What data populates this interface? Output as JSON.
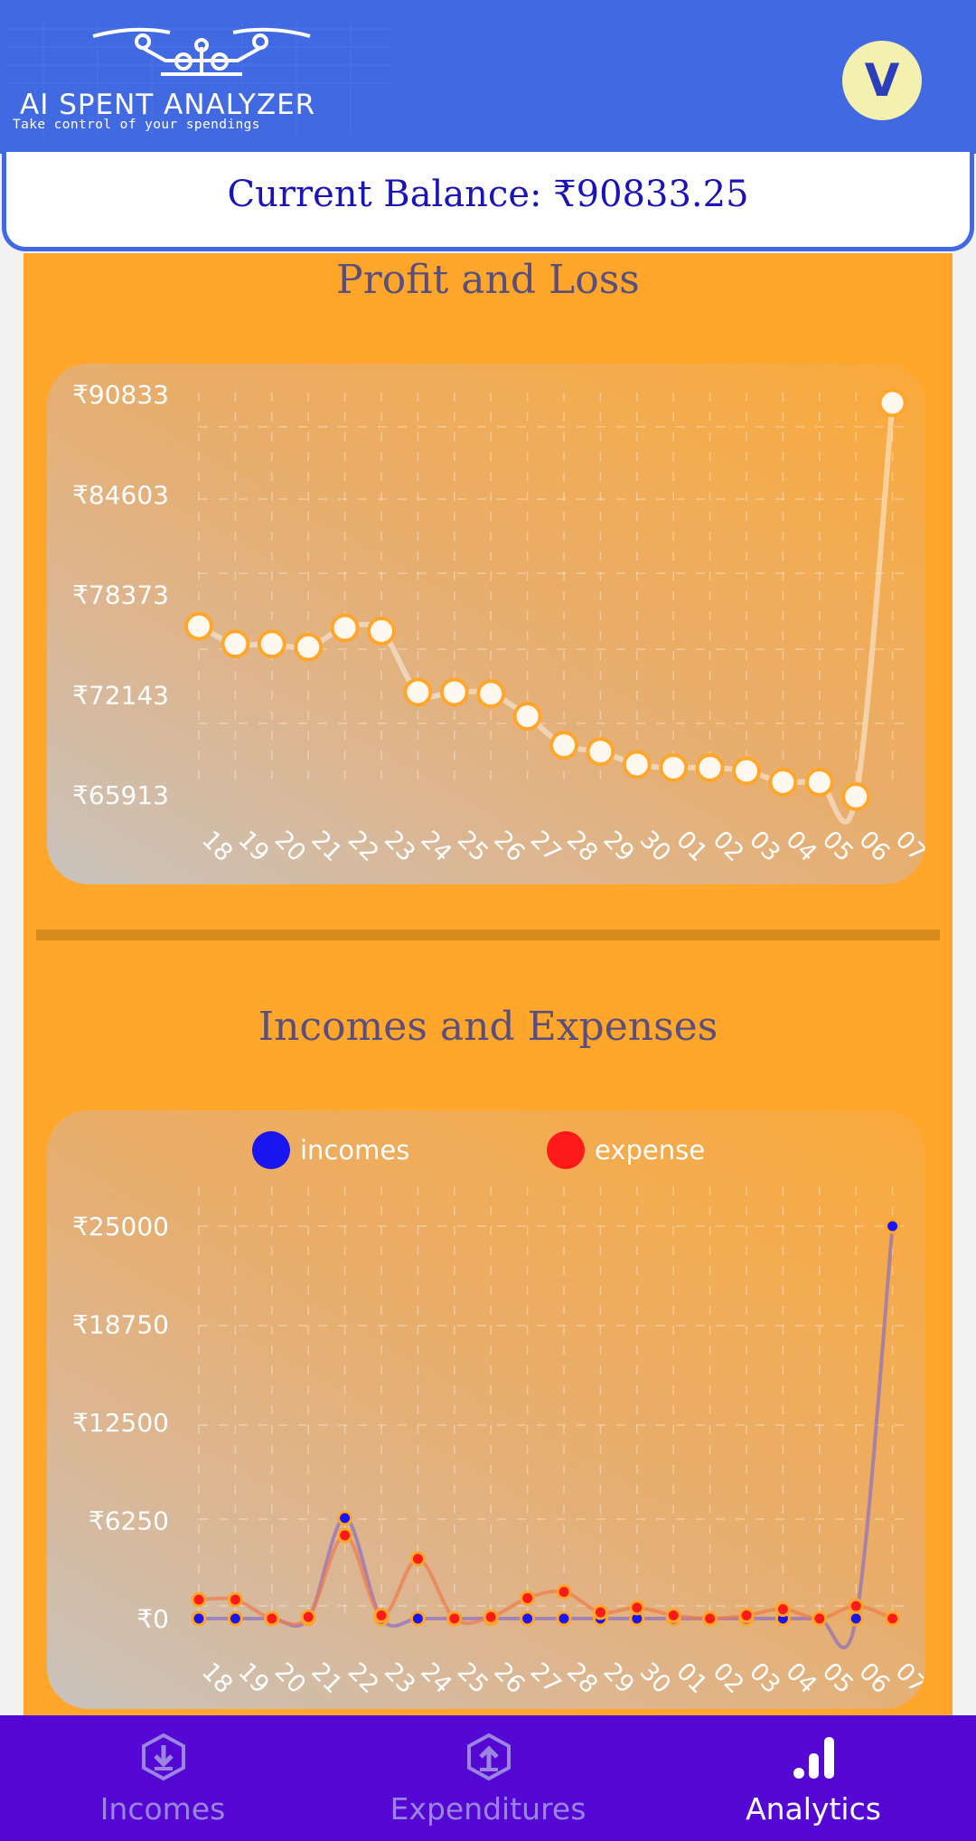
{
  "header": {
    "app_name": "AI SPENT ANALYZER",
    "tagline": "Take control of your spendings",
    "avatar_initial": "V"
  },
  "balance": {
    "text": "Current Balance: ₹90833.25"
  },
  "profit_loss": {
    "title": "Profit and Loss"
  },
  "income_expense": {
    "title": "Incomes and Expenses"
  },
  "nav": {
    "items": [
      {
        "label": "Incomes",
        "icon": "download-circle-icon",
        "active": false
      },
      {
        "label": "Expenditures",
        "icon": "upload-circle-icon",
        "active": false
      },
      {
        "label": "Analytics",
        "icon": "bar-chart-icon",
        "active": true
      }
    ]
  },
  "colors": {
    "header": "#4169e1",
    "panel": "#ffa62b",
    "nav": "#5508d4",
    "incomes": "#1a14f0",
    "expense": "#ff1a1a",
    "balance_text": "#1a13b8"
  },
  "chart_data": [
    {
      "type": "line",
      "title": "Profit and Loss",
      "x": [
        "18",
        "19",
        "20",
        "21",
        "22",
        "23",
        "24",
        "25",
        "26",
        "27",
        "28",
        "29",
        "30",
        "01",
        "02",
        "03",
        "04",
        "05",
        "06",
        "07"
      ],
      "y_ticks": [
        "₹90833",
        "₹84603",
        "₹78373",
        "₹72143",
        "₹65913"
      ],
      "y_tick_values": [
        90833,
        84603,
        78373,
        72143,
        65913
      ],
      "series": [
        {
          "values": [
            76400,
            75300,
            75300,
            75100,
            76300,
            76100,
            72300,
            72300,
            72200,
            70800,
            69000,
            68600,
            67800,
            67600,
            67600,
            67400,
            66700,
            66700,
            65800,
            90300
          ]
        }
      ],
      "ylim": [
        65913,
        90833
      ],
      "grid": true,
      "legend": "none"
    },
    {
      "type": "line",
      "title": "Incomes and Expenses",
      "x": [
        "18",
        "19",
        "20",
        "21",
        "22",
        "23",
        "24",
        "25",
        "26",
        "27",
        "28",
        "29",
        "30",
        "01",
        "02",
        "03",
        "04",
        "05",
        "06",
        "07"
      ],
      "y_ticks": [
        "₹25000",
        "₹18750",
        "₹12500",
        "₹6250",
        "₹0"
      ],
      "y_tick_values": [
        25000,
        18750,
        12500,
        6250,
        0
      ],
      "series": [
        {
          "name": "incomes",
          "values": [
            0,
            0,
            0,
            0,
            6400,
            0,
            0,
            0,
            0,
            0,
            0,
            0,
            0,
            0,
            0,
            0,
            0,
            0,
            0,
            25000
          ]
        },
        {
          "name": "expense",
          "values": [
            1200,
            1200,
            0,
            100,
            5300,
            200,
            3800,
            0,
            100,
            1300,
            1700,
            400,
            700,
            200,
            0,
            200,
            600,
            0,
            800,
            0
          ]
        }
      ],
      "ylim": [
        0,
        25000
      ],
      "grid": true,
      "legend": "top-center"
    }
  ]
}
